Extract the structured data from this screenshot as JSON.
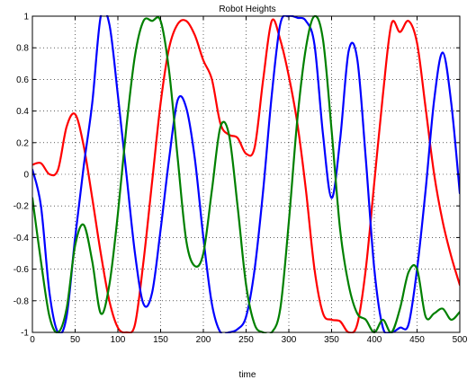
{
  "chart_data": {
    "type": "line",
    "title": "Robot Heights",
    "xlabel": "time",
    "ylabel": "",
    "xlim": [
      0,
      500
    ],
    "ylim": [
      -1,
      1
    ],
    "grid": true,
    "xticks": [
      "0",
      "50",
      "100",
      "150",
      "200",
      "250",
      "300",
      "350",
      "400",
      "450",
      "500"
    ],
    "yticks": [
      "-1",
      "-0.8",
      "-0.6",
      "-0.4",
      "-0.2",
      "0",
      "0.2",
      "0.4",
      "0.6",
      "0.8",
      "1"
    ],
    "series": [
      {
        "color": "#ff0000",
        "x": [
          0,
          10,
          20,
          30,
          40,
          50,
          60,
          70,
          80,
          90,
          100,
          110,
          120,
          130,
          140,
          150,
          160,
          170,
          180,
          190,
          200,
          210,
          220,
          230,
          240,
          250,
          260,
          270,
          280,
          290,
          300,
          310,
          320,
          330,
          340,
          350,
          360,
          370,
          380,
          390,
          400,
          410,
          420,
          430,
          440,
          450,
          460,
          470,
          480,
          490,
          500
        ],
        "y": [
          0.06,
          0.07,
          0.0,
          0.03,
          0.3,
          0.38,
          0.18,
          -0.15,
          -0.5,
          -0.8,
          -0.97,
          -1.0,
          -0.95,
          -0.55,
          -0.05,
          0.45,
          0.8,
          0.95,
          0.97,
          0.88,
          0.72,
          0.6,
          0.32,
          0.25,
          0.23,
          0.13,
          0.17,
          0.6,
          0.97,
          0.85,
          0.62,
          0.32,
          -0.1,
          -0.6,
          -0.88,
          -0.92,
          -0.93,
          -1.0,
          -0.95,
          -0.6,
          -0.05,
          0.5,
          0.95,
          0.9,
          0.97,
          0.83,
          0.42,
          0.0,
          -0.3,
          -0.52,
          -0.7
        ]
      },
      {
        "color": "#0000ff",
        "x": [
          0,
          10,
          20,
          30,
          40,
          50,
          60,
          70,
          80,
          90,
          100,
          110,
          120,
          130,
          140,
          150,
          160,
          170,
          180,
          190,
          200,
          210,
          220,
          230,
          240,
          250,
          260,
          270,
          280,
          290,
          300,
          310,
          320,
          330,
          340,
          350,
          360,
          370,
          380,
          390,
          400,
          410,
          420,
          430,
          440,
          450,
          460,
          470,
          480,
          490,
          500
        ],
        "y": [
          0.03,
          -0.2,
          -0.75,
          -1.0,
          -0.9,
          -0.4,
          0.05,
          0.45,
          1.0,
          0.95,
          0.5,
          0.0,
          -0.5,
          -0.82,
          -0.75,
          -0.35,
          0.1,
          0.47,
          0.42,
          0.1,
          -0.4,
          -0.82,
          -1.0,
          -1.0,
          -0.98,
          -0.9,
          -0.6,
          -0.1,
          0.5,
          0.95,
          1.0,
          0.99,
          0.97,
          0.82,
          0.25,
          -0.15,
          0.22,
          0.78,
          0.73,
          0.1,
          -0.6,
          -0.97,
          -1.0,
          -0.97,
          -0.95,
          -0.6,
          -0.1,
          0.47,
          0.77,
          0.45,
          -0.12
        ]
      },
      {
        "color": "#008000",
        "x": [
          0,
          10,
          20,
          30,
          40,
          50,
          60,
          70,
          80,
          90,
          100,
          110,
          120,
          130,
          140,
          150,
          160,
          170,
          180,
          190,
          200,
          210,
          220,
          230,
          240,
          250,
          260,
          270,
          280,
          290,
          300,
          310,
          320,
          330,
          340,
          350,
          360,
          370,
          380,
          390,
          400,
          410,
          420,
          430,
          440,
          450,
          460,
          470,
          480,
          490,
          500
        ],
        "y": [
          -0.15,
          -0.55,
          -0.9,
          -1.0,
          -0.85,
          -0.45,
          -0.32,
          -0.55,
          -0.88,
          -0.7,
          -0.25,
          0.3,
          0.75,
          0.97,
          0.97,
          0.97,
          0.65,
          0.1,
          -0.42,
          -0.58,
          -0.5,
          -0.1,
          0.3,
          0.25,
          -0.2,
          -0.7,
          -0.95,
          -1.0,
          -1.0,
          -0.85,
          -0.3,
          0.35,
          0.8,
          1.0,
          0.85,
          0.28,
          -0.35,
          -0.7,
          -0.88,
          -0.92,
          -1.0,
          -0.92,
          -1.0,
          -0.85,
          -0.62,
          -0.6,
          -0.9,
          -0.88,
          -0.85,
          -0.92,
          -0.87
        ]
      }
    ]
  }
}
